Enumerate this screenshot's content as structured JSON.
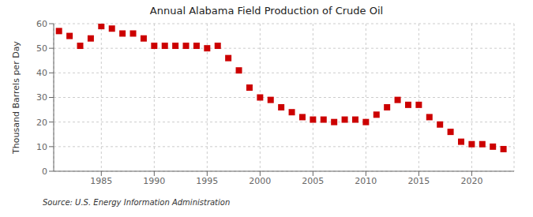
{
  "chart_data": {
    "type": "scatter",
    "title": "Annual Alabama Field Production of Crude Oil",
    "y_label": "Thousand Barrels per Day",
    "annotations": [
      "Source: U.S. Energy Information Administration"
    ],
    "x": [
      1981,
      1982,
      1983,
      1984,
      1985,
      1986,
      1987,
      1988,
      1989,
      1990,
      1991,
      1992,
      1993,
      1994,
      1995,
      1996,
      1997,
      1998,
      1999,
      2000,
      2001,
      2002,
      2003,
      2004,
      2005,
      2006,
      2007,
      2008,
      2009,
      2010,
      2011,
      2012,
      2013,
      2014,
      2015,
      2016,
      2017,
      2018,
      2019,
      2020,
      2021,
      2022,
      2023
    ],
    "values": [
      57,
      55,
      51,
      54,
      59,
      58,
      56,
      56,
      54,
      51,
      51,
      51,
      51,
      51,
      50,
      51,
      46,
      41,
      34,
      30,
      29,
      26,
      24,
      22,
      21,
      21,
      20,
      21,
      21,
      20,
      23,
      26,
      29,
      27,
      27,
      22,
      19,
      16,
      12,
      11,
      11,
      10,
      9
    ],
    "color": "#cc0000",
    "marker": "square",
    "xlim": [
      1980.5,
      2024
    ],
    "xticks": [
      1985,
      1990,
      1995,
      2000,
      2005,
      2010,
      2015,
      2020
    ],
    "ylim": [
      0,
      60
    ],
    "yticks": [
      0,
      10,
      20,
      30,
      40,
      50,
      60
    ],
    "grid": true
  }
}
